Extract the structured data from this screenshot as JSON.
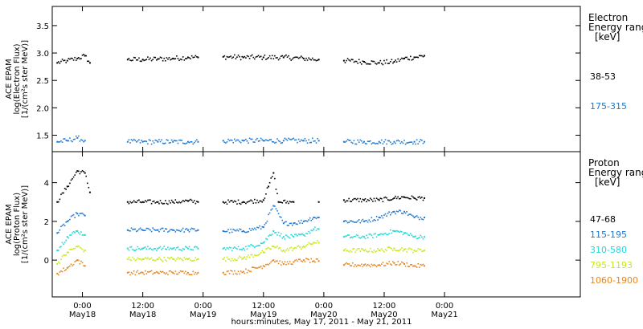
{
  "chart_data": {
    "type": "scatter",
    "xlabel": "hours:minutes, May 17, 2011 - May 21, 2011",
    "x_range_hours": [
      -6,
      99
    ],
    "x_ticks": [
      {
        "hour": 0,
        "time": "0:00",
        "day": "May18"
      },
      {
        "hour": 12,
        "time": "12:00",
        "day": "May18"
      },
      {
        "hour": 24,
        "time": "0:00",
        "day": "May19"
      },
      {
        "hour": 36,
        "time": "12:00",
        "day": "May19"
      },
      {
        "hour": 48,
        "time": "0:00",
        "day": "May20"
      },
      {
        "hour": 60,
        "time": "12:00",
        "day": "May20"
      },
      {
        "hour": 72,
        "time": "0:00",
        "day": "May21"
      }
    ],
    "panels": [
      {
        "id": "electron",
        "ylabel_lines": [
          "ACE EPAM",
          "log(Electron Flux)",
          "[1/(cm²s ster MeV)]"
        ],
        "ylim": [
          1.2,
          3.85
        ],
        "yticks": [
          1.5,
          2.0,
          2.5,
          3.0,
          3.5
        ],
        "ytick_labels": [
          "1.5",
          "2.0",
          "2.5",
          "3.0",
          "3.5"
        ],
        "legend_title_lines": [
          "Electron",
          "Energy ranges",
          "[keV]"
        ],
        "series": [
          {
            "name": "38-53",
            "color": "#000000",
            "points": [
              [
                -5,
                2.82
              ],
              [
                -3,
                2.86
              ],
              [
                -1,
                2.9
              ],
              [
                0.5,
                2.95
              ],
              [
                1.5,
                2.82
              ],
              [
                9,
                2.88
              ],
              [
                12,
                2.88
              ],
              [
                15,
                2.89
              ],
              [
                18,
                2.9
              ],
              [
                21,
                2.92
              ],
              [
                23,
                2.92
              ],
              [
                28,
                2.93
              ],
              [
                32,
                2.92
              ],
              [
                36,
                2.92
              ],
              [
                40,
                2.92
              ],
              [
                44,
                2.9
              ],
              [
                47,
                2.88
              ],
              [
                52,
                2.86
              ],
              [
                56,
                2.84
              ],
              [
                59,
                2.82
              ],
              [
                62,
                2.84
              ],
              [
                64,
                2.9
              ],
              [
                66,
                2.92
              ],
              [
                68,
                2.95
              ]
            ]
          },
          {
            "name": "175-315",
            "color": "#1e78d2",
            "points": [
              [
                -5,
                1.38
              ],
              [
                -3,
                1.4
              ],
              [
                -1,
                1.45
              ],
              [
                0.5,
                1.4
              ],
              [
                9,
                1.38
              ],
              [
                12,
                1.38
              ],
              [
                15,
                1.38
              ],
              [
                18,
                1.38
              ],
              [
                21,
                1.38
              ],
              [
                23,
                1.38
              ],
              [
                28,
                1.4
              ],
              [
                32,
                1.4
              ],
              [
                36,
                1.4
              ],
              [
                40,
                1.4
              ],
              [
                44,
                1.4
              ],
              [
                47,
                1.4
              ],
              [
                52,
                1.38
              ],
              [
                56,
                1.38
              ],
              [
                59,
                1.38
              ],
              [
                62,
                1.38
              ],
              [
                66,
                1.38
              ],
              [
                68,
                1.38
              ]
            ]
          }
        ]
      },
      {
        "id": "proton",
        "ylabel_lines": [
          "ACE EPAM",
          "log(Proton Flux)",
          "[1/(cm²s ster MeV)]"
        ],
        "ylim": [
          -1.9,
          5.6
        ],
        "yticks": [
          0,
          2,
          4
        ],
        "ytick_labels": [
          "0",
          "2",
          "4"
        ],
        "legend_title_lines": [
          "Proton",
          "Energy ranges",
          "[keV]"
        ],
        "series": [
          {
            "name": "47-68",
            "color": "#000000",
            "points": [
              [
                -5,
                3.0
              ],
              [
                -3,
                3.8
              ],
              [
                -1,
                4.6
              ],
              [
                0.5,
                4.5
              ],
              [
                1.5,
                3.5
              ],
              [
                9,
                3.0
              ],
              [
                12,
                3.0
              ],
              [
                15,
                3.0
              ],
              [
                18,
                3.0
              ],
              [
                21,
                3.05
              ],
              [
                23,
                3.0
              ],
              [
                28,
                3.0
              ],
              [
                32,
                3.0
              ],
              [
                36,
                3.1
              ],
              [
                37,
                3.8
              ],
              [
                38,
                4.5
              ],
              [
                39,
                3.0
              ],
              [
                42,
                3.0
              ],
              [
                47,
                3.0
              ],
              [
                52,
                3.1
              ],
              [
                56,
                3.1
              ],
              [
                59,
                3.1
              ],
              [
                62,
                3.2
              ],
              [
                64,
                3.25
              ],
              [
                66,
                3.2
              ],
              [
                68,
                3.2
              ]
            ]
          },
          {
            "name": "115-195",
            "color": "#1e78d2",
            "points": [
              [
                -5,
                1.4
              ],
              [
                -3,
                2.0
              ],
              [
                -1,
                2.4
              ],
              [
                0.5,
                2.3
              ],
              [
                9,
                1.55
              ],
              [
                12,
                1.55
              ],
              [
                15,
                1.55
              ],
              [
                18,
                1.55
              ],
              [
                21,
                1.55
              ],
              [
                23,
                1.55
              ],
              [
                28,
                1.5
              ],
              [
                32,
                1.5
              ],
              [
                36,
                1.7
              ],
              [
                38,
                2.8
              ],
              [
                40,
                1.9
              ],
              [
                42,
                1.9
              ],
              [
                44,
                2.0
              ],
              [
                46,
                2.2
              ],
              [
                47,
                2.2
              ],
              [
                52,
                2.0
              ],
              [
                56,
                2.0
              ],
              [
                59,
                2.2
              ],
              [
                62,
                2.5
              ],
              [
                64,
                2.5
              ],
              [
                66,
                2.2
              ],
              [
                68,
                2.2
              ]
            ]
          },
          {
            "name": "310-580",
            "color": "#20d8d8",
            "points": [
              [
                -5,
                0.5
              ],
              [
                -3,
                1.2
              ],
              [
                -1,
                1.5
              ],
              [
                0.5,
                1.3
              ],
              [
                9,
                0.6
              ],
              [
                12,
                0.6
              ],
              [
                15,
                0.6
              ],
              [
                18,
                0.6
              ],
              [
                21,
                0.6
              ],
              [
                23,
                0.6
              ],
              [
                28,
                0.6
              ],
              [
                32,
                0.6
              ],
              [
                36,
                0.9
              ],
              [
                38,
                1.5
              ],
              [
                40,
                1.2
              ],
              [
                42,
                1.2
              ],
              [
                44,
                1.3
              ],
              [
                46,
                1.6
              ],
              [
                47,
                1.6
              ],
              [
                52,
                1.2
              ],
              [
                56,
                1.2
              ],
              [
                59,
                1.3
              ],
              [
                62,
                1.5
              ],
              [
                64,
                1.4
              ],
              [
                66,
                1.2
              ],
              [
                68,
                1.2
              ]
            ]
          },
          {
            "name": "795-1193",
            "color": "#c8e81e",
            "points": [
              [
                -5,
                -0.2
              ],
              [
                -3,
                0.4
              ],
              [
                -1,
                0.7
              ],
              [
                0.5,
                0.5
              ],
              [
                9,
                0.05
              ],
              [
                12,
                0.05
              ],
              [
                15,
                0.05
              ],
              [
                18,
                0.05
              ],
              [
                21,
                0.05
              ],
              [
                23,
                0.05
              ],
              [
                28,
                0.05
              ],
              [
                32,
                0.1
              ],
              [
                36,
                0.4
              ],
              [
                38,
                0.7
              ],
              [
                40,
                0.5
              ],
              [
                42,
                0.6
              ],
              [
                44,
                0.7
              ],
              [
                46,
                0.9
              ],
              [
                47,
                0.9
              ],
              [
                52,
                0.5
              ],
              [
                56,
                0.5
              ],
              [
                59,
                0.5
              ],
              [
                62,
                0.6
              ],
              [
                64,
                0.55
              ],
              [
                66,
                0.5
              ],
              [
                68,
                0.5
              ]
            ]
          },
          {
            "name": "1060-1900",
            "color": "#e8861e",
            "points": [
              [
                -5,
                -0.7
              ],
              [
                -3,
                -0.4
              ],
              [
                -1,
                0.0
              ],
              [
                0.5,
                -0.3
              ],
              [
                9,
                -0.65
              ],
              [
                12,
                -0.65
              ],
              [
                15,
                -0.65
              ],
              [
                18,
                -0.65
              ],
              [
                21,
                -0.65
              ],
              [
                23,
                -0.65
              ],
              [
                28,
                -0.65
              ],
              [
                32,
                -0.6
              ],
              [
                36,
                -0.3
              ],
              [
                38,
                0.0
              ],
              [
                40,
                -0.2
              ],
              [
                42,
                -0.1
              ],
              [
                44,
                0.0
              ],
              [
                46,
                -0.05
              ],
              [
                47,
                -0.05
              ],
              [
                52,
                -0.25
              ],
              [
                56,
                -0.25
              ],
              [
                59,
                -0.25
              ],
              [
                62,
                -0.15
              ],
              [
                64,
                -0.2
              ],
              [
                66,
                -0.3
              ],
              [
                68,
                -0.3
              ]
            ]
          }
        ]
      }
    ]
  }
}
